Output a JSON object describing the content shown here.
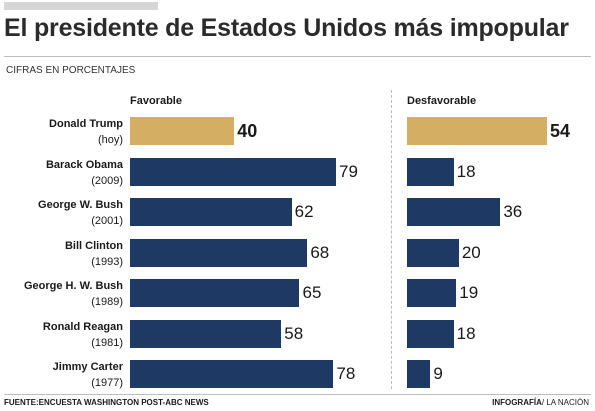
{
  "title": "El presidente de Estados Unidos más impopular",
  "subtitle": "CIFRAS EN PORCENTAJES",
  "footer": {
    "source_label": "FUENTE:",
    "source": "ENCUESTA WASHINGTON POST-ABC NEWS",
    "credit_bold": "INFOGRAFÍA",
    "credit": "/ LA NACIÓN"
  },
  "colors": {
    "highlight": "#d4ae62",
    "bar": "#1e3963"
  },
  "chart_data": {
    "type": "bar",
    "orientation": "horizontal",
    "categories": [
      {
        "name": "Donald Trump",
        "year": "(hoy)"
      },
      {
        "name": "Barack Obama",
        "year": "(2009)"
      },
      {
        "name": "George W. Bush",
        "year": "(2001)"
      },
      {
        "name": "Bill Clinton",
        "year": "(1993)"
      },
      {
        "name": "George H. W. Bush",
        "year": "(1989)"
      },
      {
        "name": "Ronald Reagan",
        "year": "(1981)"
      },
      {
        "name": "Jimmy Carter",
        "year": "(1977)"
      }
    ],
    "series": [
      {
        "name": "Favorable",
        "values": [
          40,
          79,
          62,
          68,
          65,
          58,
          78
        ]
      },
      {
        "name": "Desfavorable",
        "values": [
          54,
          18,
          36,
          20,
          19,
          18,
          9
        ]
      }
    ],
    "highlight_index": 0,
    "grid": false
  }
}
